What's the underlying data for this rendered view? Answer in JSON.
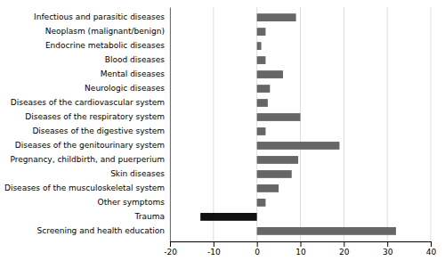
{
  "chart_data": {
    "type": "bar",
    "orientation": "horizontal",
    "categories": [
      "Infectious and parasitic diseases",
      "Neoplasm (malignant/benign)",
      "Endocrine metabolic diseases",
      "Blood diseases",
      "Mental diseases",
      "Neurologic diseases",
      "Diseases of the cardiovascular system",
      "Diseases of the respiratory system",
      "Diseases of the digestive system",
      "Diseases of the genitourinary system",
      "Pregnancy, childbirth, and puerperium",
      "Skin diseases",
      "Diseases of the musculoskeletal system",
      "Other symptoms",
      "Trauma",
      "Screening and health education"
    ],
    "values": [
      9,
      2,
      1,
      2,
      6,
      3,
      2.5,
      10,
      2,
      19,
      9.5,
      8,
      5,
      2,
      -13,
      32
    ],
    "colors": [
      "#666666",
      "#666666",
      "#666666",
      "#666666",
      "#666666",
      "#666666",
      "#666666",
      "#666666",
      "#666666",
      "#666666",
      "#666666",
      "#666666",
      "#666666",
      "#666666",
      "#111111",
      "#666666"
    ],
    "xlim": [
      -20,
      40
    ],
    "xticks": [
      -20,
      -10,
      0,
      10,
      20,
      30,
      40
    ],
    "grid": true
  }
}
